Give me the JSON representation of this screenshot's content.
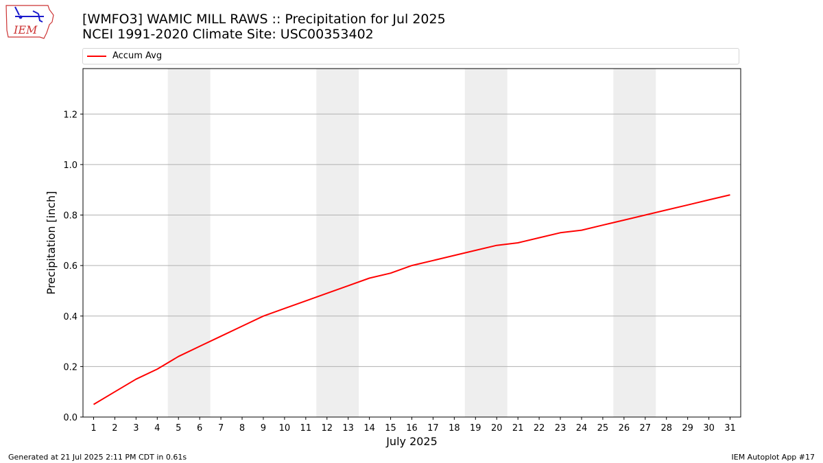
{
  "header": {
    "logo_text": "IEM",
    "title_line1": "[WMFO3] WAMIC MILL RAWS :: Precipitation for Jul 2025",
    "title_line2": "NCEI 1991-2020 Climate Site: USC00353402"
  },
  "footer": {
    "generated": "Generated at 21 Jul 2025 2:11 PM CDT in 0.61s",
    "app": "IEM Autoplot App #17"
  },
  "colors": {
    "series": "#ff0000",
    "weekend_shade": "#eeeeee",
    "grid": "#b0b0b0",
    "logo": "#cc3333",
    "logo_icons": "#1a1acc"
  },
  "chart_data": {
    "type": "line",
    "xlabel": "July 2025",
    "ylabel": "Precipitation [inch]",
    "xlim": [
      0.5,
      31.5
    ],
    "ylim": [
      0,
      1.38
    ],
    "yticks": [
      0.0,
      0.2,
      0.4,
      0.6,
      0.8,
      1.0,
      1.2
    ],
    "ytick_labels": [
      "0.0",
      "0.2",
      "0.4",
      "0.6",
      "0.8",
      "1.0",
      "1.2"
    ],
    "x": [
      1,
      2,
      3,
      4,
      5,
      6,
      7,
      8,
      9,
      10,
      11,
      12,
      13,
      14,
      15,
      16,
      17,
      18,
      19,
      20,
      21,
      22,
      23,
      24,
      25,
      26,
      27,
      28,
      29,
      30,
      31
    ],
    "xtick_labels": [
      "1",
      "2",
      "3",
      "4",
      "5",
      "6",
      "7",
      "8",
      "9",
      "10",
      "11",
      "12",
      "13",
      "14",
      "15",
      "16",
      "17",
      "18",
      "19",
      "20",
      "21",
      "22",
      "23",
      "24",
      "25",
      "26",
      "27",
      "28",
      "29",
      "30",
      "31"
    ],
    "grid": "horizontal",
    "legend_position": "top",
    "weekend_shading": [
      [
        5,
        6
      ],
      [
        12,
        13
      ],
      [
        19,
        20
      ],
      [
        26,
        27
      ]
    ],
    "series": [
      {
        "name": "Accum Avg",
        "values": [
          0.05,
          0.1,
          0.15,
          0.19,
          0.24,
          0.28,
          0.32,
          0.36,
          0.4,
          0.43,
          0.46,
          0.49,
          0.52,
          0.55,
          0.57,
          0.6,
          0.62,
          0.64,
          0.66,
          0.68,
          0.69,
          0.71,
          0.73,
          0.74,
          0.76,
          0.78,
          0.8,
          0.82,
          0.84,
          0.86,
          0.88
        ]
      }
    ]
  }
}
